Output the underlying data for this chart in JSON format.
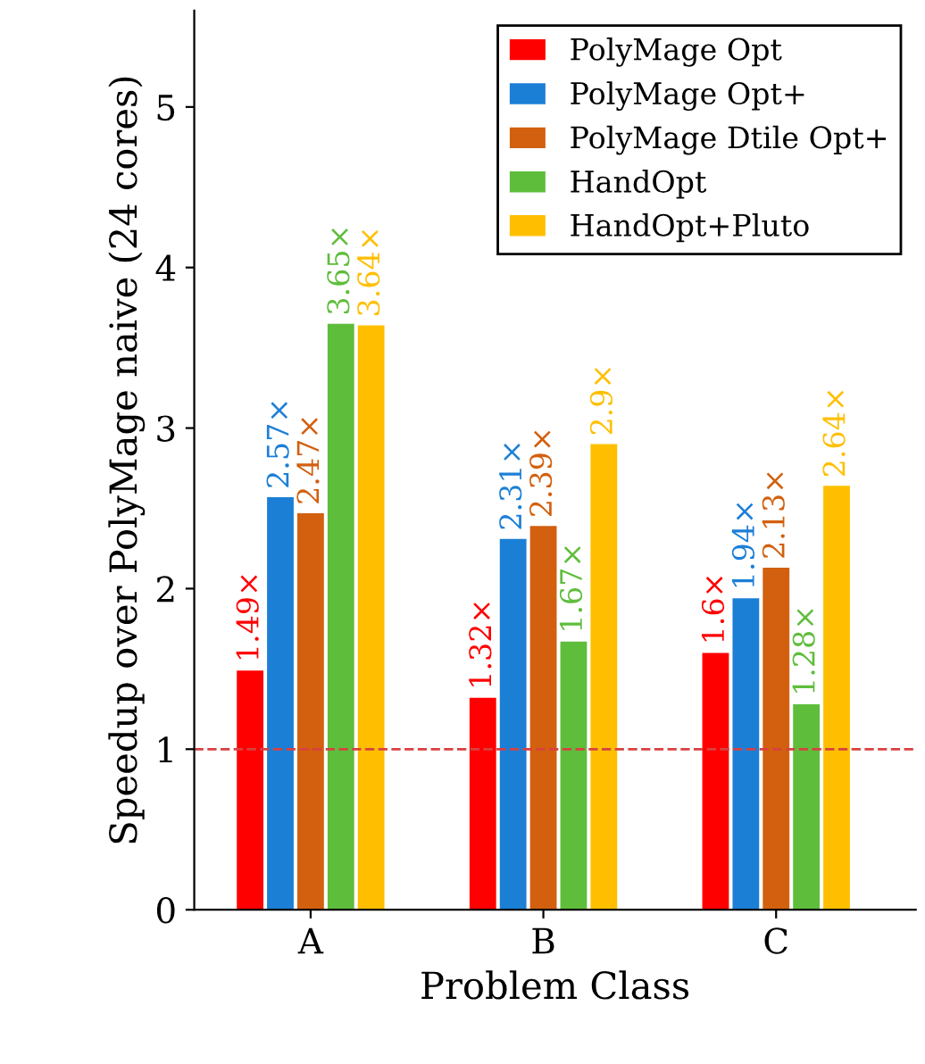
{
  "chart_data": {
    "type": "bar",
    "xlabel": "Problem Class",
    "ylabel": "Speedup over PolyMage naive (24 cores)",
    "categories": [
      "A",
      "B",
      "C"
    ],
    "series": [
      {
        "name": "PolyMage Opt",
        "color": "#ff0000",
        "values": [
          1.49,
          1.32,
          1.6
        ],
        "value_labels": [
          "1.49×",
          "1.32×",
          "1.6×"
        ]
      },
      {
        "name": "PolyMage Opt+",
        "color": "#1c7fd6",
        "values": [
          2.57,
          2.31,
          1.94
        ],
        "value_labels": [
          "2.57×",
          "2.31×",
          "1.94×"
        ]
      },
      {
        "name": "PolyMage Dtile Opt+",
        "color": "#d2600f",
        "values": [
          2.47,
          2.39,
          2.13
        ],
        "value_labels": [
          "2.47×",
          "2.39×",
          "2.13×"
        ]
      },
      {
        "name": "HandOpt",
        "color": "#5fbd3c",
        "values": [
          3.65,
          1.67,
          1.28
        ],
        "value_labels": [
          "3.65×",
          "1.67×",
          "1.28×"
        ]
      },
      {
        "name": "HandOpt+Pluto",
        "color": "#ffbf00",
        "values": [
          3.64,
          2.9,
          2.64
        ],
        "value_labels": [
          "3.64×",
          "2.9×",
          "2.64×"
        ]
      }
    ],
    "ylim": [
      0,
      5.6
    ],
    "yticks": [
      0,
      1,
      2,
      3,
      4,
      5
    ],
    "ref_lines": [
      {
        "axis": "y",
        "value": 1,
        "color": "#d94040",
        "line_style": "dashed"
      }
    ],
    "legend": "top right",
    "grid": false
  }
}
